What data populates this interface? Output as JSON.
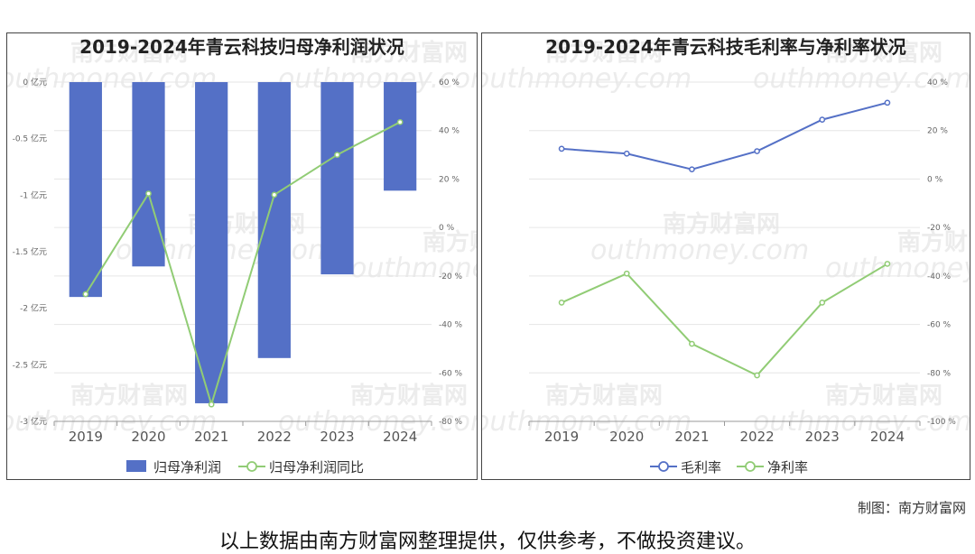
{
  "chart_data": [
    {
      "type": "bar+line",
      "title": "2019-2024年青云科技归母净利润状况",
      "categories": [
        "2019",
        "2020",
        "2021",
        "2022",
        "2023",
        "2024"
      ],
      "left_axis": {
        "ticks": [
          "0 亿元",
          "-0.5 亿元",
          "-1 亿元",
          "-1.5 亿元",
          "-2 亿元",
          "-2.5 亿元",
          "-3 亿元"
        ],
        "range": [
          -3,
          0
        ]
      },
      "right_axis": {
        "ticks": [
          "60 %",
          "40 %",
          "20 %",
          "0 %",
          "-20 %",
          "-40 %",
          "-60 %",
          "-80 %"
        ],
        "range": [
          -80,
          60
        ]
      },
      "series": [
        {
          "name": "归母净利润",
          "kind": "bar",
          "axis": "left",
          "color": "#5470c6",
          "values": [
            -1.9,
            -1.63,
            -2.84,
            -2.44,
            -1.7,
            -0.96
          ]
        },
        {
          "name": "归母净利润同比",
          "kind": "line",
          "axis": "right",
          "color": "#91cc75",
          "values": [
            -27.5,
            14,
            -73,
            13.5,
            30,
            43.5
          ]
        }
      ]
    },
    {
      "type": "line",
      "title": "2019-2024年青云科技毛利率与净利率状况",
      "categories": [
        "2019",
        "2020",
        "2021",
        "2022",
        "2023",
        "2024"
      ],
      "right_axis": {
        "ticks": [
          "40 %",
          "20 %",
          "0 %",
          "-20 %",
          "-40 %",
          "-60 %",
          "-80 %",
          "-100 %"
        ],
        "range": [
          -100,
          40
        ]
      },
      "series": [
        {
          "name": "毛利率",
          "kind": "line",
          "color": "#5470c6",
          "values": [
            12.5,
            10.5,
            4,
            11.5,
            24.5,
            31.5
          ]
        },
        {
          "name": "净利率",
          "kind": "line",
          "color": "#91cc75",
          "values": [
            -51,
            -39,
            -68,
            -81,
            -51,
            -35
          ]
        }
      ]
    }
  ],
  "watermark": {
    "cn": "南方财富网",
    "en": "outhmoney.com"
  },
  "credit": "制图：南方财富网",
  "disclaimer": "以上数据由南方财富网整理提供，仅供参考，不做投资建议。"
}
